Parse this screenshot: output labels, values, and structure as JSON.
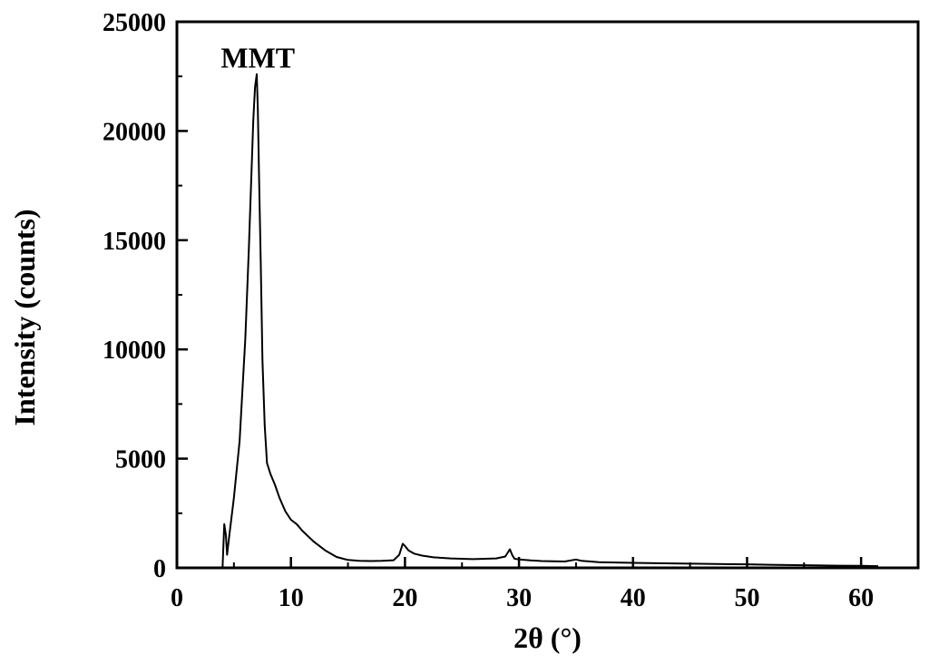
{
  "chart_data": {
    "type": "line",
    "title": "",
    "xlabel": "2θ (°)",
    "ylabel": "Intensity (counts)",
    "xlim": [
      0,
      65
    ],
    "ylim": [
      0,
      25000
    ],
    "x_ticks": [
      0,
      10,
      20,
      30,
      40,
      50,
      60
    ],
    "y_ticks": [
      0,
      5000,
      10000,
      15000,
      20000,
      25000
    ],
    "x_tick_labels": [
      "0",
      "10",
      "20",
      "30",
      "40",
      "50",
      "60"
    ],
    "y_tick_labels": [
      "0",
      "5000",
      "10000",
      "15000",
      "20000",
      "25000"
    ],
    "x_minor_step": 5,
    "y_minor_step": 2500,
    "grid": false,
    "legend": "none",
    "annotations": [
      {
        "text": "MMT",
        "x": 7.1,
        "y": 23400
      }
    ],
    "series": [
      {
        "color": "#000000",
        "x": [
          4.0,
          4.15,
          4.3,
          4.4,
          4.6,
          5.0,
          5.5,
          6.0,
          6.3,
          6.5,
          6.7,
          6.85,
          7.0,
          7.1,
          7.2,
          7.35,
          7.5,
          7.7,
          7.9,
          8.2,
          8.6,
          9.0,
          9.5,
          10.0,
          10.5,
          11.0,
          12.0,
          13.0,
          14.0,
          15.0,
          16.0,
          17.0,
          18.0,
          19.0,
          19.5,
          19.8,
          20.0,
          20.3,
          20.8,
          21.5,
          22.5,
          24.0,
          26.0,
          28.0,
          28.8,
          29.2,
          29.4,
          29.6,
          30.0,
          31.0,
          32.0,
          33.0,
          34.0,
          35.0,
          35.5,
          36.0,
          37.0,
          38.0,
          40.0,
          42.0,
          45.0,
          48.0,
          50.0,
          52.0,
          55.0,
          58.0,
          60.0,
          61.5
        ],
        "y": [
          0,
          2000,
          1500,
          600,
          1500,
          3200,
          5800,
          10500,
          14500,
          17500,
          20500,
          22000,
          22600,
          21000,
          18000,
          14000,
          9500,
          6500,
          4800,
          4300,
          3800,
          3200,
          2600,
          2200,
          2000,
          1700,
          1200,
          800,
          500,
          360,
          320,
          310,
          320,
          350,
          600,
          1100,
          1000,
          800,
          650,
          560,
          480,
          430,
          400,
          430,
          520,
          850,
          600,
          420,
          380,
          340,
          310,
          300,
          290,
          380,
          320,
          300,
          260,
          250,
          230,
          210,
          190,
          170,
          160,
          140,
          120,
          100,
          90,
          80
        ]
      }
    ]
  }
}
